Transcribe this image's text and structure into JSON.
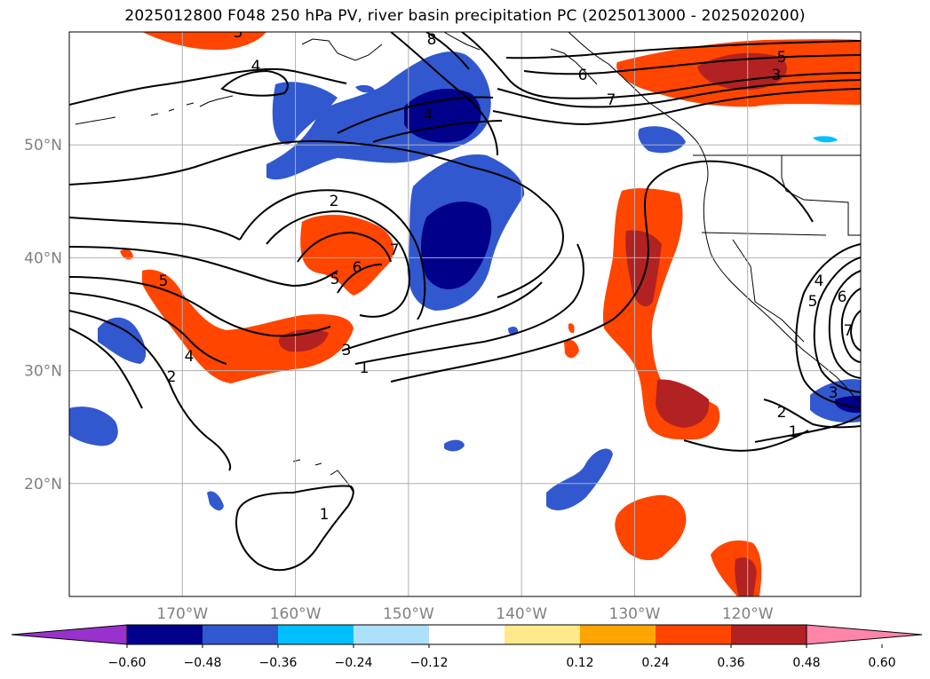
{
  "title": "2025012800 F048 250 hPa PV, river basin precipitation PC (2025013000 - 2025020200)",
  "map": {
    "lon_range": [
      -180,
      -110
    ],
    "lat_range": [
      10,
      60
    ],
    "lat_ticks": [
      {
        "value": 50,
        "label": "50°N"
      },
      {
        "value": 40,
        "label": "40°N"
      },
      {
        "value": 30,
        "label": "30°N"
      },
      {
        "value": 20,
        "label": "20°N"
      }
    ],
    "lon_ticks": [
      {
        "value": -170,
        "label": "170°W"
      },
      {
        "value": -160,
        "label": "160°W"
      },
      {
        "value": -150,
        "label": "150°W"
      },
      {
        "value": -140,
        "label": "140°W"
      },
      {
        "value": -130,
        "label": "130°W"
      },
      {
        "value": -120,
        "label": "120°W"
      }
    ],
    "contour_labels": [
      "3",
      "4",
      "8",
      "6",
      "7",
      "5",
      "3",
      "4",
      "2",
      "7",
      "5",
      "6",
      "5",
      "3",
      "1",
      "4",
      "2",
      "1",
      "4",
      "5",
      "6",
      "7",
      "3",
      "2",
      "1"
    ]
  },
  "colorbar": {
    "extend": "both",
    "colors": [
      "#9932cc",
      "#00008b",
      "#3158cf",
      "#00bfff",
      "#ade0fa",
      "#ffffff",
      "#ffe98a",
      "#ffa500",
      "#ff4500",
      "#b22222",
      "#ff85a9"
    ],
    "tick_labels": [
      "−0.60",
      "−0.48",
      "−0.36",
      "−0.24",
      "−0.12",
      "0.12",
      "0.24",
      "0.36",
      "0.48",
      "0.60"
    ]
  }
}
